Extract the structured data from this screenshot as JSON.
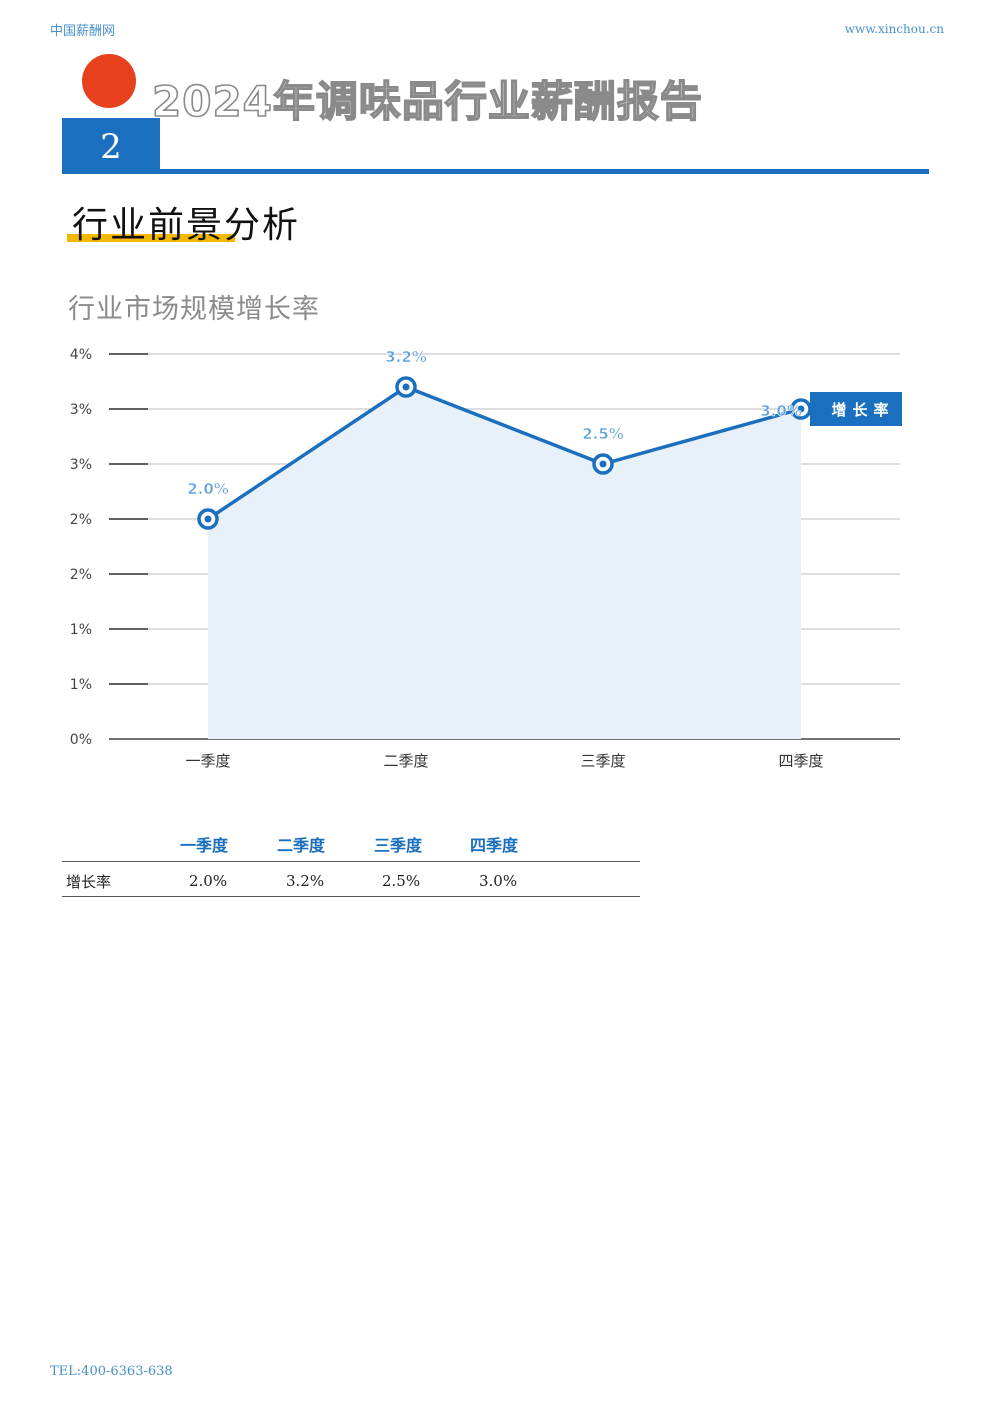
{
  "header": {
    "site_name": "中国薪酬网",
    "url": "www.xinchou.cn"
  },
  "report_title": "2024年调味品行业薪酬报告",
  "section_number": "2",
  "section_title": "行业前景分析",
  "colors": {
    "accent": "#1a6fbe",
    "dot": "#e8401c",
    "underline": "#f5b800",
    "area": "#e8f1fa"
  },
  "chart_data": {
    "type": "area",
    "title": "行业市场规模增长率",
    "categories": [
      "一季度",
      "二季度",
      "三季度",
      "四季度"
    ],
    "series": [
      {
        "name": "增长率",
        "values": [
          2.0,
          3.2,
          2.5,
          3.0
        ]
      }
    ],
    "data_labels": [
      "2.0%",
      "3.2%",
      "2.5%",
      "3.0%"
    ],
    "y_tick_labels": [
      "0%",
      "1%",
      "1%",
      "2%",
      "2%",
      "3%",
      "3%",
      "4%"
    ],
    "ylim": [
      0,
      3.5
    ],
    "grid": true,
    "legend": "right"
  },
  "table": {
    "headers": [
      "一季度",
      "二季度",
      "三季度",
      "四季度"
    ],
    "rows": [
      {
        "label": "增长率",
        "values": [
          "2.0%",
          "3.2%",
          "2.5%",
          "3.0%"
        ]
      }
    ]
  },
  "footer": {
    "tel": "TEL:400-6363-638"
  }
}
